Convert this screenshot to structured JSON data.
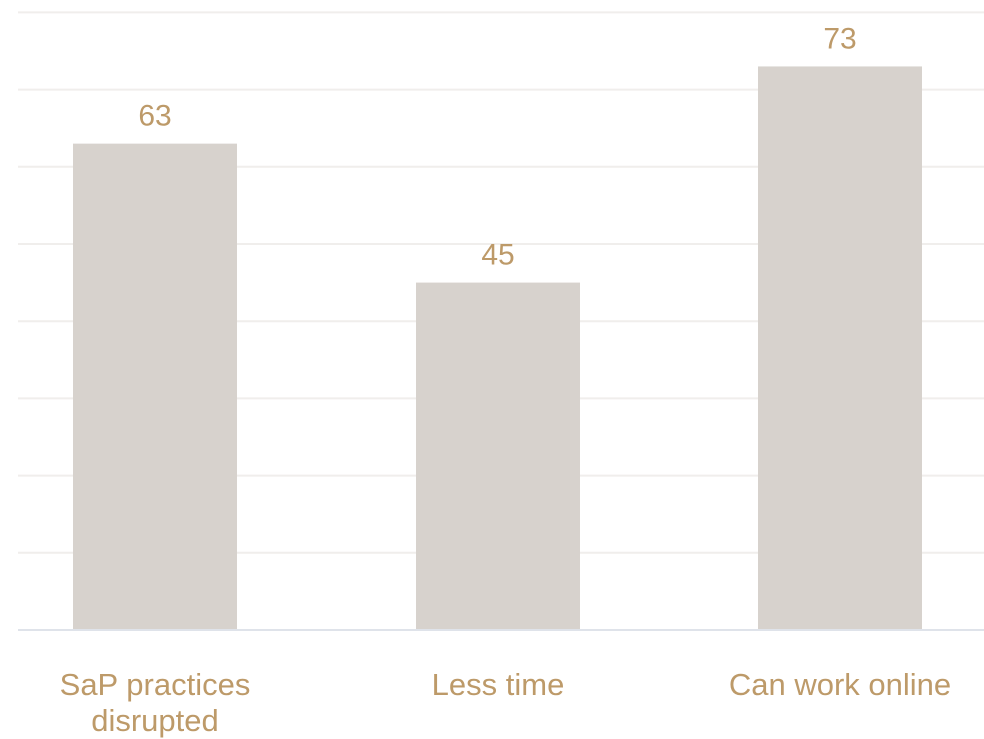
{
  "chart_data": {
    "type": "bar",
    "categories": [
      [
        "SaP practices",
        "disrupted"
      ],
      [
        "Less time"
      ],
      [
        "Can work online"
      ]
    ],
    "values": [
      63,
      45,
      73
    ],
    "show_data_labels": true,
    "ylim": [
      0,
      80
    ],
    "grid": true,
    "colors": {
      "bar": "#d7d2cd",
      "label": "#bd9a69",
      "grid": "#f0eeec",
      "axis": "#dfe3ea"
    }
  }
}
